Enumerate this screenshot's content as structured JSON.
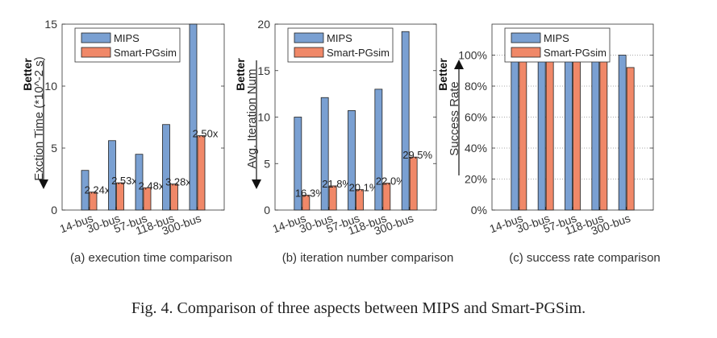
{
  "caption": "Fig. 4.  Comparison of three aspects between MIPS and Smart-PGSim.",
  "colors": {
    "mips": "#7aa0d2",
    "smart": "#f08868",
    "axis": "#333333",
    "grid": "#000000"
  },
  "chart_data": [
    {
      "type": "bar",
      "subtitle": "(a) execution time comparison",
      "ylabel": "Exction Time (*10^-2 s)",
      "better_label": "Better",
      "better_dir": "down",
      "categories": [
        "14-bus",
        "30-bus",
        "57-bus",
        "118-bus",
        "300-bus"
      ],
      "ylim": [
        0,
        15
      ],
      "yticks": [
        0,
        5,
        10,
        15
      ],
      "ytick_labels": [
        "0",
        "5",
        "10",
        "15"
      ],
      "grid": false,
      "legend": "top-left",
      "series": [
        {
          "name": "MIPS",
          "values": [
            3.2,
            5.6,
            4.5,
            6.9,
            15.0
          ]
        },
        {
          "name": "Smart-PGsim",
          "values": [
            1.45,
            2.2,
            1.8,
            2.1,
            6.0
          ]
        }
      ],
      "annotations": [
        "2.24x",
        "2.53x",
        "2.48x",
        "3.28x",
        "2.50x"
      ]
    },
    {
      "type": "bar",
      "subtitle": "(b) iteration number comparison",
      "ylabel": "Avg. Iteration Num",
      "better_label": "Better",
      "better_dir": "down",
      "categories": [
        "14-bus",
        "30-bus",
        "57-bus",
        "118-bus",
        "300-bus"
      ],
      "ylim": [
        0,
        20
      ],
      "yticks": [
        0,
        5,
        10,
        15,
        20
      ],
      "ytick_labels": [
        "0",
        "5",
        "10",
        "15",
        "20"
      ],
      "grid": false,
      "legend": "top-left",
      "series": [
        {
          "name": "MIPS",
          "values": [
            10.0,
            12.1,
            10.7,
            13.0,
            19.2
          ]
        },
        {
          "name": "Smart-PGsim",
          "values": [
            1.6,
            2.6,
            2.2,
            2.9,
            5.7
          ]
        }
      ],
      "annotations": [
        "16.3%",
        "21.8%",
        "20.1%",
        "22.0%",
        "29.5%"
      ]
    },
    {
      "type": "bar",
      "subtitle": "(c) success rate comparison",
      "ylabel": "Success Rate",
      "better_label": "Better",
      "better_dir": "up",
      "categories": [
        "14-bus",
        "30-bus",
        "57-bus",
        "118-bus",
        "300-bus"
      ],
      "ylim": [
        0,
        1.2
      ],
      "yticks": [
        0,
        0.2,
        0.4,
        0.6,
        0.8,
        1.0
      ],
      "ytick_labels": [
        "0%",
        "20%",
        "40%",
        "60%",
        "80%",
        "100%"
      ],
      "grid": true,
      "legend": "top-left",
      "series": [
        {
          "name": "MIPS",
          "values": [
            1.0,
            1.0,
            1.0,
            1.0,
            1.0
          ]
        },
        {
          "name": "Smart-PGsim",
          "values": [
            1.0,
            0.97,
            1.0,
            1.0,
            0.92
          ]
        }
      ],
      "annotations": []
    }
  ]
}
